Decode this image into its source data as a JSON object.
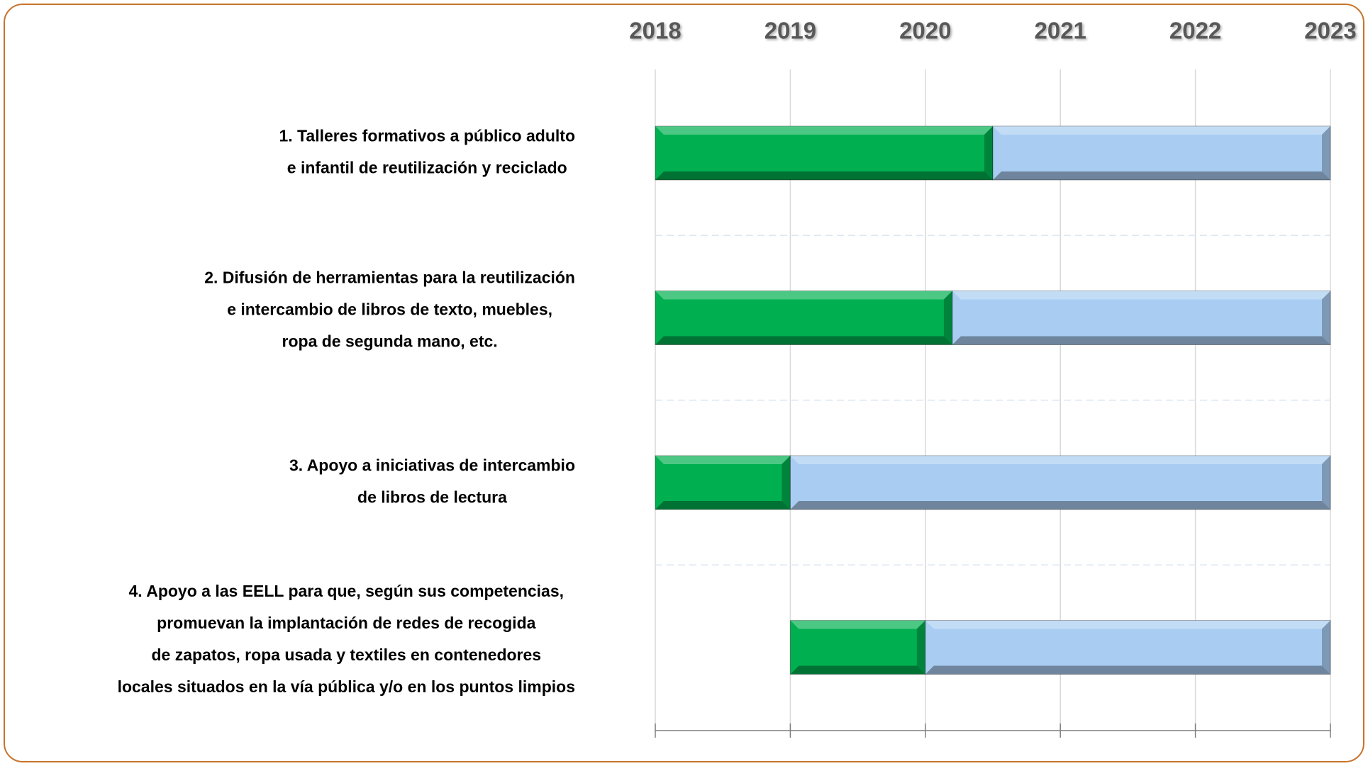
{
  "chart_data": {
    "type": "gantt",
    "categories": [
      [
        "1. Talleres formativos a público adulto",
        "e infantil de reutilización y reciclado"
      ],
      [
        "2. Difusión de herramientas para la reutilización",
        "e intercambio de libros de texto, muebles,",
        "ropa de segunda mano, etc."
      ],
      [
        "3. Apoyo a iniciativas de intercambio",
        "de libros de lectura"
      ],
      [
        "4. Apoyo a las EELL para que, según sus competencias,",
        "promuevan la implantación de redes de recogida",
        "de zapatos, ropa usada y textiles en contenedores",
        "locales situados en la vía pública y/o en los puntos limpios"
      ]
    ],
    "starts": [
      2018,
      2018,
      2018,
      2019
    ],
    "series": [
      {
        "color": "#00b050",
        "values": [
          2.5,
          2.2,
          1,
          1
        ]
      },
      {
        "color": "#a9cdf2",
        "values": [
          2.5,
          2.8,
          4,
          3
        ]
      }
    ],
    "xlim": [
      2018,
      2023
    ],
    "xticks": [
      2018,
      2019,
      2020,
      2021,
      2022,
      2023
    ],
    "grid": true
  }
}
